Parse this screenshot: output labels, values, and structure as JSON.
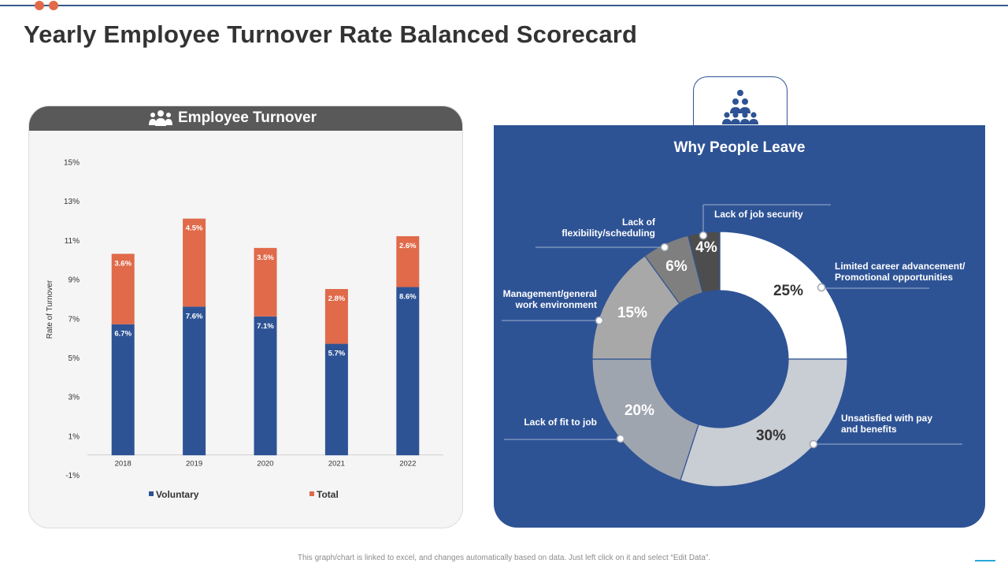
{
  "title": "Yearly Employee Turnover Rate Balanced Scorecard",
  "left_panel": {
    "title": "Employee Turnover",
    "icon": "people-group-icon"
  },
  "right_panel": {
    "title": "Why People Leave",
    "tab_icon": "team-pyramid-icon"
  },
  "footer": "This graph/chart is linked to excel, and changes automatically based on data. Just left click on it and select “Edit Data”.",
  "colors": {
    "voluntary": "#2e5395",
    "total": "#e06a4a",
    "panel_header": "#595959",
    "panel_blue": "#2e5395"
  },
  "chart_data": [
    {
      "type": "bar",
      "stacked": true,
      "categories": [
        "2018",
        "2019",
        "2020",
        "2021",
        "2022"
      ],
      "series": [
        {
          "name": "Voluntary",
          "values": [
            6.7,
            7.6,
            7.1,
            5.7,
            8.6
          ],
          "labels": [
            "6.7%",
            "7.6%",
            "7.1%",
            "5.7%",
            "8.6%"
          ],
          "color": "#2e5395"
        },
        {
          "name": "Total",
          "values": [
            3.6,
            4.5,
            3.5,
            2.8,
            2.6
          ],
          "labels": [
            "3.6%",
            "4.5%",
            "3.5%",
            "2.8%",
            "2.6%"
          ],
          "color": "#e06a4a"
        }
      ],
      "ylabel": "Rate of Turnover",
      "yticks": [
        "15%",
        "13%",
        "11%",
        "9%",
        "7%",
        "5%",
        "3%",
        "1%",
        "-1%"
      ],
      "ytick_values": [
        15,
        13,
        11,
        9,
        7,
        5,
        3,
        1,
        -1
      ],
      "ylim": [
        -1,
        15
      ],
      "legend_position": "bottom",
      "grid": false
    },
    {
      "type": "pie",
      "donut": true,
      "slices": [
        {
          "label": "Limited career advancement/\nPromotional opportunities",
          "value": 25,
          "text": "25%",
          "color": "#ffffff",
          "text_color": "#333333"
        },
        {
          "label": "Unsatisfied with pay\nand benefits",
          "value": 30,
          "text": "30%",
          "color": "#c9cdd4",
          "text_color": "#333333"
        },
        {
          "label": "Lack of fit to job",
          "value": 20,
          "text": "20%",
          "color": "#9fa5af",
          "text_color": "#ffffff"
        },
        {
          "label": "Management/general\nwork environment",
          "value": 15,
          "text": "15%",
          "color": "#a8a8a8",
          "text_color": "#ffffff"
        },
        {
          "label": "Lack of\nflexibility/scheduling",
          "value": 6,
          "text": "6%",
          "color": "#7f7f7f",
          "text_color": "#ffffff"
        },
        {
          "label": "Lack of job security",
          "value": 4,
          "text": "4%",
          "color": "#4d4d4d",
          "text_color": "#ffffff"
        }
      ]
    }
  ]
}
